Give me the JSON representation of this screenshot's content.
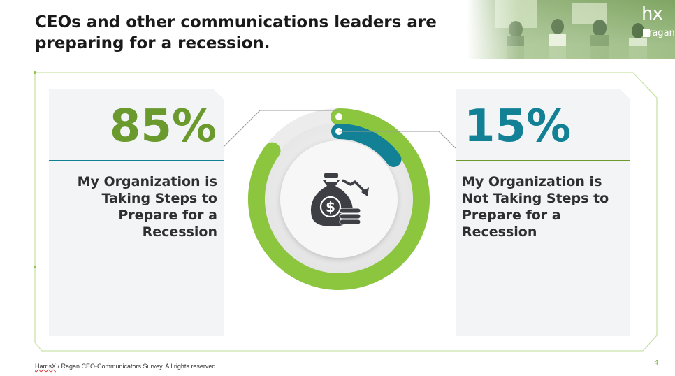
{
  "title": "CEOs and other communications leaders are preparing for a recession.",
  "logo": {
    "hx_text": "hx",
    "ragan_text": "ragan"
  },
  "left_stat": {
    "value": "85%",
    "label": "My Organization is Taking Steps to Prepare for a Recession"
  },
  "right_stat": {
    "value": "15%",
    "label": "My Organization is Not Taking Steps to Prepare for a Recession"
  },
  "chart_data": {
    "type": "pie",
    "categories": [
      "My Organization is Taking Steps to Prepare for a Recession",
      "My Organization is Not Taking Steps to Prepare for a Recession"
    ],
    "values": [
      85,
      15
    ],
    "colors": [
      "#8cc63f",
      "#128196"
    ]
  },
  "icon": "money-bag-with-coins-downtrend-icon",
  "footer": {
    "brand": "HarrisX",
    "text": " / Ragan CEO-Communicators Survey. All rights reserved."
  },
  "page_number": "4",
  "colors": {
    "green": "#8cc63f",
    "dark_green": "#6a9a2d",
    "teal": "#128196"
  }
}
